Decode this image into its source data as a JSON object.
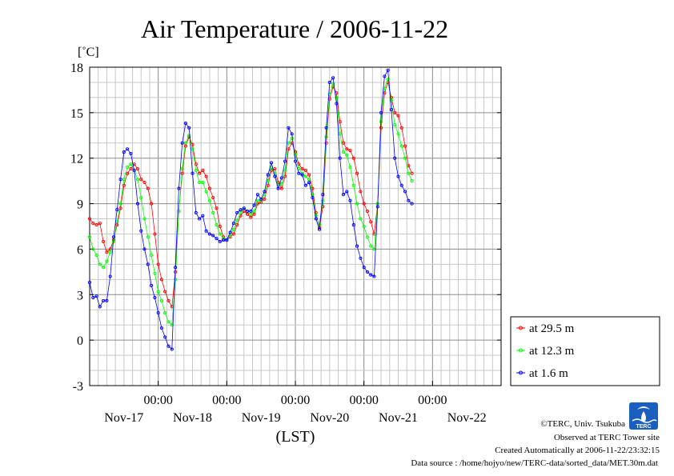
{
  "chart_data": {
    "type": "line",
    "title": "Air Temperature / 2006-11-22",
    "ylabel": "[˚C]",
    "xlabel": "(LST)",
    "ylim": [
      -3,
      18
    ],
    "yticks": [
      "-3",
      "0",
      "3",
      "6",
      "9",
      "12",
      "15",
      "18"
    ],
    "xlim": [
      0,
      6
    ],
    "time_ticks": [
      "00:00",
      "00:00",
      "00:00",
      "00:00",
      "00:00"
    ],
    "date_labels": [
      "Nov-17",
      "Nov-18",
      "Nov-19",
      "Nov-20",
      "Nov-21",
      "Nov-22"
    ],
    "grid": true,
    "legend_position": "right-bottom outside",
    "series": [
      {
        "name": "at 29.5 m",
        "color": "#ff0000",
        "points": [
          [
            0.0,
            8.0
          ],
          [
            0.05,
            7.7
          ],
          [
            0.1,
            7.6
          ],
          [
            0.15,
            7.7
          ],
          [
            0.2,
            6.5
          ],
          [
            0.25,
            5.8
          ],
          [
            0.3,
            6.0
          ],
          [
            0.35,
            6.6
          ],
          [
            0.4,
            7.6
          ],
          [
            0.45,
            8.7
          ],
          [
            0.5,
            10.2
          ],
          [
            0.55,
            11.0
          ],
          [
            0.6,
            11.3
          ],
          [
            0.65,
            11.6
          ],
          [
            0.7,
            11.3
          ],
          [
            0.75,
            10.6
          ],
          [
            0.8,
            10.4
          ],
          [
            0.85,
            10.0
          ],
          [
            0.9,
            9.0
          ],
          [
            0.95,
            7.0
          ],
          [
            1.0,
            5.0
          ],
          [
            1.05,
            4.0
          ],
          [
            1.1,
            3.2
          ],
          [
            1.15,
            2.6
          ],
          [
            1.2,
            2.2
          ],
          [
            1.25,
            4.5
          ],
          [
            1.3,
            8.5
          ],
          [
            1.35,
            11.0
          ],
          [
            1.4,
            12.8
          ],
          [
            1.45,
            13.4
          ],
          [
            1.5,
            12.9
          ],
          [
            1.55,
            11.6
          ],
          [
            1.6,
            11.0
          ],
          [
            1.65,
            11.2
          ],
          [
            1.7,
            10.8
          ],
          [
            1.75,
            10.0
          ],
          [
            1.8,
            9.4
          ],
          [
            1.85,
            8.7
          ],
          [
            1.9,
            7.5
          ],
          [
            1.95,
            6.8
          ],
          [
            2.0,
            6.6
          ],
          [
            2.05,
            6.8
          ],
          [
            2.1,
            7.0
          ],
          [
            2.15,
            7.6
          ],
          [
            2.2,
            8.2
          ],
          [
            2.25,
            8.5
          ],
          [
            2.3,
            8.3
          ],
          [
            2.35,
            8.1
          ],
          [
            2.4,
            8.3
          ],
          [
            2.45,
            9.0
          ],
          [
            2.5,
            9.1
          ],
          [
            2.55,
            9.3
          ],
          [
            2.6,
            10.2
          ],
          [
            2.65,
            11.2
          ],
          [
            2.7,
            11.3
          ],
          [
            2.75,
            10.4
          ],
          [
            2.8,
            10.0
          ],
          [
            2.85,
            10.8
          ],
          [
            2.9,
            12.6
          ],
          [
            2.95,
            13.0
          ],
          [
            3.0,
            12.4
          ],
          [
            3.05,
            11.6
          ],
          [
            3.1,
            11.3
          ],
          [
            3.15,
            11.2
          ],
          [
            3.2,
            10.9
          ],
          [
            3.25,
            10.0
          ],
          [
            3.3,
            8.4
          ],
          [
            3.35,
            7.4
          ],
          [
            3.4,
            8.8
          ],
          [
            3.45,
            13.0
          ],
          [
            3.5,
            15.9
          ],
          [
            3.55,
            16.7
          ],
          [
            3.6,
            16.3
          ],
          [
            3.65,
            14.4
          ],
          [
            3.7,
            13.0
          ],
          [
            3.75,
            12.6
          ],
          [
            3.8,
            12.5
          ],
          [
            3.85,
            12.0
          ],
          [
            3.9,
            11.0
          ],
          [
            3.95,
            9.8
          ],
          [
            4.0,
            9.0
          ],
          [
            4.05,
            8.5
          ],
          [
            4.1,
            7.8
          ],
          [
            4.15,
            7.0
          ],
          [
            4.2,
            9.0
          ],
          [
            4.25,
            14.0
          ],
          [
            4.3,
            16.3
          ],
          [
            4.35,
            17.0
          ],
          [
            4.4,
            16.0
          ],
          [
            4.45,
            15.0
          ],
          [
            4.5,
            14.8
          ],
          [
            4.55,
            14.0
          ],
          [
            4.6,
            12.8
          ],
          [
            4.65,
            11.5
          ],
          [
            4.7,
            11.0
          ]
        ]
      },
      {
        "name": "at 12.3 m",
        "color": "#00ff00",
        "points": [
          [
            0.0,
            6.8
          ],
          [
            0.05,
            6.0
          ],
          [
            0.1,
            5.6
          ],
          [
            0.15,
            5.0
          ],
          [
            0.2,
            4.8
          ],
          [
            0.25,
            5.2
          ],
          [
            0.3,
            5.8
          ],
          [
            0.35,
            6.5
          ],
          [
            0.4,
            7.8
          ],
          [
            0.45,
            9.0
          ],
          [
            0.5,
            10.6
          ],
          [
            0.55,
            11.4
          ],
          [
            0.6,
            11.6
          ],
          [
            0.65,
            11.2
          ],
          [
            0.7,
            10.6
          ],
          [
            0.75,
            9.4
          ],
          [
            0.8,
            8.0
          ],
          [
            0.85,
            6.8
          ],
          [
            0.9,
            5.6
          ],
          [
            0.95,
            4.4
          ],
          [
            1.0,
            3.2
          ],
          [
            1.05,
            2.6
          ],
          [
            1.1,
            1.8
          ],
          [
            1.15,
            1.2
          ],
          [
            1.2,
            1.0
          ],
          [
            1.25,
            4.0
          ],
          [
            1.3,
            8.5
          ],
          [
            1.35,
            11.3
          ],
          [
            1.4,
            13.0
          ],
          [
            1.45,
            13.5
          ],
          [
            1.5,
            12.6
          ],
          [
            1.55,
            11.2
          ],
          [
            1.6,
            10.4
          ],
          [
            1.65,
            10.4
          ],
          [
            1.7,
            9.8
          ],
          [
            1.75,
            9.2
          ],
          [
            1.8,
            8.4
          ],
          [
            1.85,
            7.6
          ],
          [
            1.9,
            7.0
          ],
          [
            1.95,
            6.7
          ],
          [
            2.0,
            6.6
          ],
          [
            2.05,
            6.9
          ],
          [
            2.1,
            7.3
          ],
          [
            2.15,
            7.9
          ],
          [
            2.2,
            8.4
          ],
          [
            2.25,
            8.7
          ],
          [
            2.3,
            8.5
          ],
          [
            2.35,
            8.3
          ],
          [
            2.4,
            8.5
          ],
          [
            2.45,
            9.2
          ],
          [
            2.5,
            9.2
          ],
          [
            2.55,
            9.6
          ],
          [
            2.6,
            10.5
          ],
          [
            2.65,
            11.4
          ],
          [
            2.7,
            11.0
          ],
          [
            2.75,
            10.2
          ],
          [
            2.8,
            10.3
          ],
          [
            2.85,
            11.2
          ],
          [
            2.9,
            13.0
          ],
          [
            2.95,
            13.3
          ],
          [
            3.0,
            12.2
          ],
          [
            3.05,
            11.3
          ],
          [
            3.1,
            11.0
          ],
          [
            3.15,
            10.8
          ],
          [
            3.2,
            10.6
          ],
          [
            3.25,
            9.6
          ],
          [
            3.3,
            8.2
          ],
          [
            3.35,
            7.6
          ],
          [
            3.4,
            9.2
          ],
          [
            3.45,
            13.4
          ],
          [
            3.5,
            16.2
          ],
          [
            3.55,
            16.9
          ],
          [
            3.6,
            16.0
          ],
          [
            3.65,
            13.6
          ],
          [
            3.7,
            12.4
          ],
          [
            3.75,
            12.2
          ],
          [
            3.8,
            11.4
          ],
          [
            3.85,
            10.2
          ],
          [
            3.9,
            9.0
          ],
          [
            3.95,
            8.0
          ],
          [
            4.0,
            7.5
          ],
          [
            4.05,
            6.8
          ],
          [
            4.1,
            6.2
          ],
          [
            4.15,
            6.0
          ],
          [
            4.2,
            9.0
          ],
          [
            4.25,
            14.4
          ],
          [
            4.3,
            16.6
          ],
          [
            4.35,
            17.2
          ],
          [
            4.4,
            15.8
          ],
          [
            4.45,
            14.2
          ],
          [
            4.5,
            13.6
          ],
          [
            4.55,
            12.8
          ],
          [
            4.6,
            12.0
          ],
          [
            4.65,
            11.0
          ],
          [
            4.7,
            10.5
          ]
        ]
      },
      {
        "name": "at 1.6 m",
        "color": "#0000ff",
        "points": [
          [
            0.0,
            3.8
          ],
          [
            0.05,
            2.8
          ],
          [
            0.1,
            2.9
          ],
          [
            0.15,
            2.2
          ],
          [
            0.2,
            2.6
          ],
          [
            0.25,
            2.6
          ],
          [
            0.3,
            4.2
          ],
          [
            0.35,
            6.8
          ],
          [
            0.4,
            8.6
          ],
          [
            0.45,
            10.6
          ],
          [
            0.5,
            12.4
          ],
          [
            0.55,
            12.6
          ],
          [
            0.6,
            12.3
          ],
          [
            0.65,
            11.2
          ],
          [
            0.7,
            9.0
          ],
          [
            0.75,
            7.2
          ],
          [
            0.8,
            6.0
          ],
          [
            0.85,
            5.0
          ],
          [
            0.9,
            3.6
          ],
          [
            0.95,
            2.8
          ],
          [
            1.0,
            1.8
          ],
          [
            1.05,
            0.8
          ],
          [
            1.1,
            0.2
          ],
          [
            1.15,
            -0.4
          ],
          [
            1.2,
            -0.6
          ],
          [
            1.25,
            4.8
          ],
          [
            1.3,
            10.0
          ],
          [
            1.35,
            13.0
          ],
          [
            1.4,
            14.3
          ],
          [
            1.45,
            14.0
          ],
          [
            1.5,
            11.0
          ],
          [
            1.55,
            8.4
          ],
          [
            1.6,
            8.0
          ],
          [
            1.65,
            8.2
          ],
          [
            1.7,
            7.2
          ],
          [
            1.75,
            7.0
          ],
          [
            1.8,
            6.9
          ],
          [
            1.85,
            6.7
          ],
          [
            1.9,
            6.5
          ],
          [
            1.95,
            6.6
          ],
          [
            2.0,
            6.6
          ],
          [
            2.05,
            7.1
          ],
          [
            2.1,
            7.7
          ],
          [
            2.15,
            8.4
          ],
          [
            2.2,
            8.6
          ],
          [
            2.25,
            8.7
          ],
          [
            2.3,
            8.5
          ],
          [
            2.35,
            8.5
          ],
          [
            2.4,
            8.9
          ],
          [
            2.45,
            9.6
          ],
          [
            2.5,
            9.3
          ],
          [
            2.55,
            9.8
          ],
          [
            2.6,
            10.9
          ],
          [
            2.65,
            11.7
          ],
          [
            2.7,
            10.8
          ],
          [
            2.75,
            10.0
          ],
          [
            2.8,
            10.7
          ],
          [
            2.85,
            11.8
          ],
          [
            2.9,
            14.0
          ],
          [
            2.95,
            13.6
          ],
          [
            3.0,
            11.8
          ],
          [
            3.05,
            11.0
          ],
          [
            3.1,
            10.9
          ],
          [
            3.15,
            10.2
          ],
          [
            3.2,
            10.4
          ],
          [
            3.25,
            9.4
          ],
          [
            3.3,
            8.0
          ],
          [
            3.35,
            7.3
          ],
          [
            3.4,
            9.6
          ],
          [
            3.45,
            14.0
          ],
          [
            3.5,
            17.0
          ],
          [
            3.55,
            17.3
          ],
          [
            3.6,
            15.6
          ],
          [
            3.65,
            12.0
          ],
          [
            3.7,
            9.6
          ],
          [
            3.75,
            9.8
          ],
          [
            3.8,
            9.2
          ],
          [
            3.85,
            7.6
          ],
          [
            3.9,
            6.2
          ],
          [
            3.95,
            5.4
          ],
          [
            4.0,
            4.8
          ],
          [
            4.05,
            4.5
          ],
          [
            4.1,
            4.3
          ],
          [
            4.15,
            4.2
          ],
          [
            4.2,
            8.8
          ],
          [
            4.25,
            15.0
          ],
          [
            4.3,
            17.4
          ],
          [
            4.35,
            17.8
          ],
          [
            4.4,
            15.2
          ],
          [
            4.45,
            12.0
          ],
          [
            4.5,
            10.8
          ],
          [
            4.55,
            10.2
          ],
          [
            4.6,
            9.8
          ],
          [
            4.65,
            9.2
          ],
          [
            4.7,
            9.0
          ]
        ]
      }
    ]
  },
  "credits": {
    "copyright": "©TERC, Univ. Tsukuba",
    "observed": "Observed at TERC Tower site",
    "created": "Created Automatically at 2006-11-22/23:32:15",
    "source": "Data source : /home/hojyo/new/TERC-data/sorted_data/MET.30m.dat"
  },
  "logo": {
    "text": "TERC"
  }
}
